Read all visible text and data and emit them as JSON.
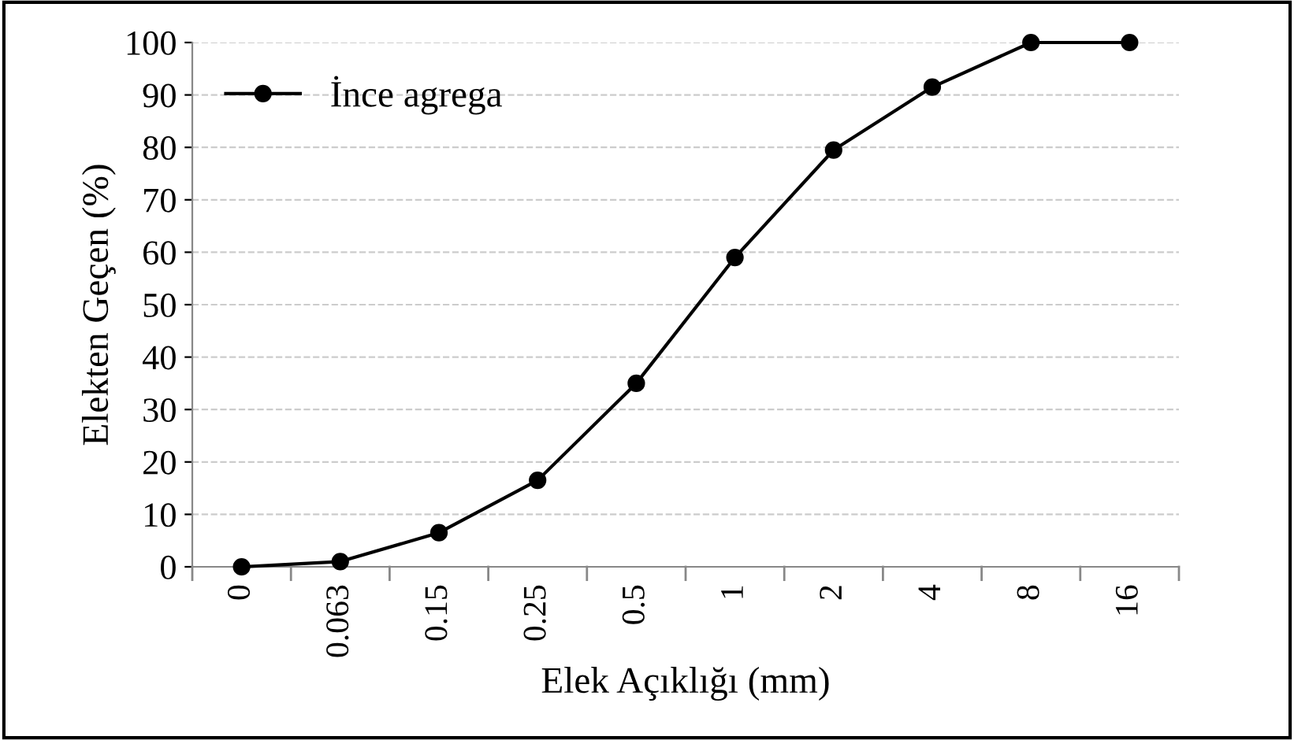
{
  "chart_data": {
    "type": "line",
    "xlabel": "Elek Açıklığı (mm)",
    "ylabel": "Elekten Geçen (%)",
    "categories": [
      "0",
      "0.063",
      "0.15",
      "0.25",
      "0.5",
      "1",
      "2",
      "4",
      "8",
      "16"
    ],
    "series": [
      {
        "name": "İnce agrega",
        "color": "#000000",
        "values": [
          0,
          1,
          6.5,
          16.5,
          35,
          59,
          79.5,
          91.5,
          100,
          100
        ]
      }
    ],
    "ylim": [
      0,
      100
    ],
    "yticks": [
      0,
      10,
      20,
      30,
      40,
      50,
      60,
      70,
      80,
      90,
      100
    ],
    "grid": "y",
    "legend": "top left",
    "marker": "circle",
    "line_style": "solid"
  }
}
